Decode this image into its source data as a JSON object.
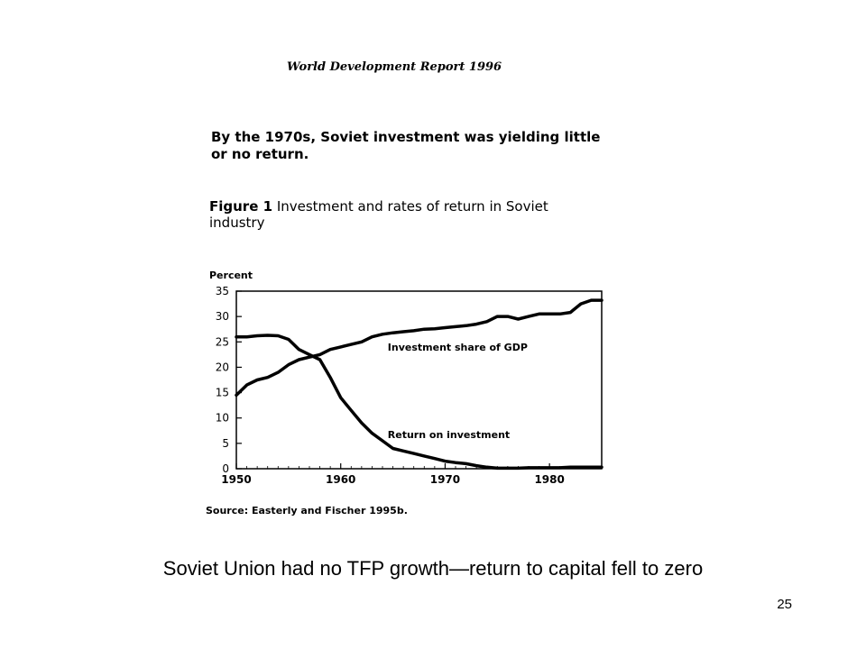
{
  "report_title": "World Development Report 1996",
  "headline": "By the 1970s, Soviet investment was yielding little or no return.",
  "figure": {
    "label": "Figure 1",
    "title": "Investment and rates of return in Soviet industry"
  },
  "source": "Source: Easterly and Fischer 1995b.",
  "caption": "Soviet Union had no TFP growth—return to capital fell to zero",
  "page_number": "25",
  "chart_data": {
    "type": "line",
    "ylabel": "Percent",
    "xlabel": "",
    "xlim": [
      1950,
      1985
    ],
    "ylim": [
      0,
      35
    ],
    "xticks": [
      "1950",
      "1960",
      "1970",
      "1980"
    ],
    "yticks": [
      "0",
      "5",
      "10",
      "15",
      "20",
      "25",
      "30",
      "35"
    ],
    "grid": false,
    "line_color": "#000000",
    "series": [
      {
        "name": "Investment share of GDP",
        "x": [
          1950,
          1951,
          1952,
          1953,
          1954,
          1955,
          1956,
          1957,
          1958,
          1959,
          1960,
          1961,
          1962,
          1963,
          1964,
          1965,
          1966,
          1967,
          1968,
          1969,
          1970,
          1971,
          1972,
          1973,
          1974,
          1975,
          1976,
          1977,
          1978,
          1979,
          1980,
          1981,
          1982,
          1983,
          1984,
          1985
        ],
        "values": [
          14.5,
          16.5,
          17.5,
          18,
          19,
          20.5,
          21.5,
          22,
          22.5,
          23.5,
          24,
          24.5,
          25,
          26,
          26.5,
          26.8,
          27,
          27.2,
          27.5,
          27.6,
          27.8,
          28,
          28.2,
          28.5,
          29,
          30,
          30,
          29.5,
          30,
          30.5,
          30.5,
          30.5,
          30.8,
          32.5,
          33.2,
          33.2
        ]
      },
      {
        "name": "Return on investment",
        "x": [
          1950,
          1951,
          1952,
          1953,
          1954,
          1955,
          1956,
          1957,
          1958,
          1959,
          1960,
          1961,
          1962,
          1963,
          1964,
          1965,
          1966,
          1967,
          1968,
          1969,
          1970,
          1971,
          1972,
          1973,
          1974,
          1975,
          1976,
          1977,
          1978,
          1979,
          1980,
          1981,
          1982,
          1983,
          1984,
          1985
        ],
        "values": [
          26,
          26,
          26.2,
          26.3,
          26.2,
          25.5,
          23.5,
          22.5,
          21.5,
          18,
          14,
          11.5,
          9,
          7,
          5.5,
          4,
          3.5,
          3,
          2.5,
          2,
          1.5,
          1.2,
          1,
          0.6,
          0.3,
          0.1,
          0.1,
          0.1,
          0.2,
          0.2,
          0.2,
          0.2,
          0.3,
          0.3,
          0.3,
          0.3
        ]
      }
    ],
    "annotations": [
      {
        "text": "Investment share of GDP",
        "x": 1964.5,
        "y": 23.3
      },
      {
        "text": "Return on investment",
        "x": 1964.5,
        "y": 6
      }
    ]
  }
}
